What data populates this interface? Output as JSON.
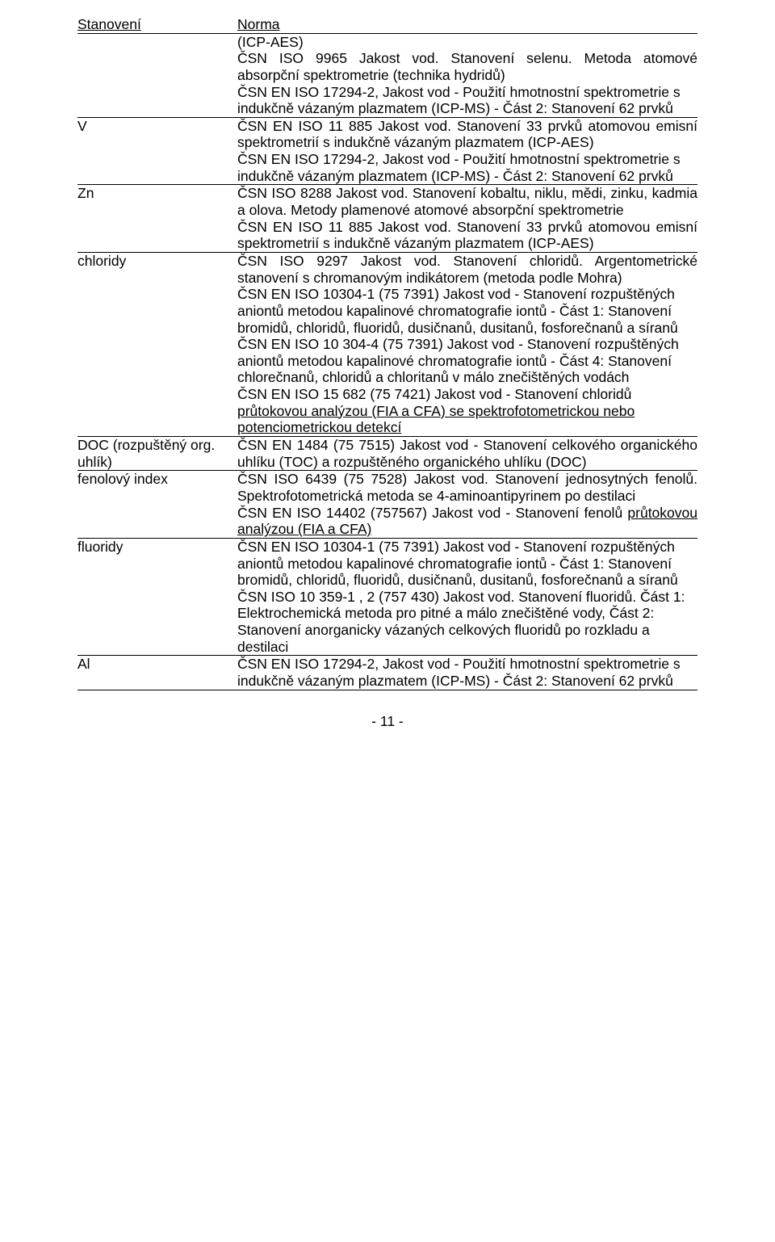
{
  "header": {
    "left": "Stanovení",
    "right": "Norma"
  },
  "rows": [
    {
      "left": "",
      "right": [
        {
          "t": "(ICP-AES)"
        },
        {
          "t": "ČSN ISO 9965 Jakost vod. Stanovení selenu. Metoda atomové absorpční spektrometrie (technika hydridů)"
        },
        {
          "t": "ČSN EN ISO 17294-2, Jakost vod - Použití hmotnostní spektrometrie s indukčně vázaným plazmatem (ICP-MS) - Část 2: Stanovení 62 prvků"
        }
      ]
    },
    {
      "left": "V",
      "right": [
        {
          "t": "ČSN EN ISO 11 885 Jakost vod. Stanovení 33 prvků atomovou emisní spektrometrií s indukčně vázaným plazmatem (ICP-AES)"
        },
        {
          "t": "ČSN EN ISO 17294-2, Jakost vod - Použití hmotnostní spektrometrie s indukčně vázaným plazmatem (ICP-MS) - Část 2: Stanovení 62 prvků"
        }
      ]
    },
    {
      "left": "Zn",
      "right": [
        {
          "t": "ČSN ISO 8288 Jakost vod. Stanovení kobaltu, niklu, mědi, zinku, kadmia a olova. Metody plamenové atomové absorpční spektrometrie"
        },
        {
          "t": "ČSN EN ISO 11 885 Jakost vod. Stanovení 33 prvků atomovou emisní spektrometrií s indukčně vázaným plazmatem (ICP-AES)"
        }
      ]
    },
    {
      "left": "chloridy",
      "right": [
        {
          "t": "ČSN ISO 9297 Jakost vod. Stanovení chloridů. Argentometrické stanovení s chromanovým indikátorem (metoda podle Mohra)"
        },
        {
          "t": "ČSN EN ISO 10304-1 (75 7391) Jakost vod - Stanovení rozpuštěných aniontů metodou kapalinové chromatografie iontů - Část 1: Stanovení bromidů, chloridů, fluoridů, dusičnanů, dusitanů, fosforečnanů a síranů"
        },
        {
          "t": "ČSN EN ISO 10 304-4  (75 7391) Jakost vod - Stanovení rozpuštěných aniontů metodou kapalinové chromatografie iontů - Část 4: Stanovení chlorečnanů, chloridů a chloritanů v málo znečištěných vodách"
        },
        {
          "t_pre": "ČSN EN ISO 15 682 (75 7421) Jakost vod - Stanovení chloridů ",
          "t_u": "průtokovou analýzou (FIA a CFA) se spektrofotometrickou nebo potenciometrickou detekcí"
        }
      ]
    },
    {
      "left": "DOC (rozpuštěný org. uhlík)",
      "right": [
        {
          "t": "ČSN EN 1484 (75 7515) Jakost vod - Stanovení celkového organického uhlíku (TOC) a rozpuštěného organického uhlíku (DOC)"
        }
      ]
    },
    {
      "left": "fenolový index",
      "right": [
        {
          "t": "ČSN ISO 6439 (75 7528) Jakost vod. Stanovení jednosytných fenolů. Spektrofotometrická metoda se 4-aminoantipyrinem po destilaci"
        },
        {
          "t_pre": "ČSN EN ISO 14402 (757567) Jakost vod - Stanovení fenolů ",
          "t_u": "průtokovou analýzou (FIA a CFA)"
        }
      ]
    },
    {
      "left": "fluoridy",
      "right": [
        {
          "t": "ČSN EN ISO 10304-1 (75 7391) Jakost vod - Stanovení rozpuštěných aniontů metodou kapalinové chromatografie iontů - Část 1: Stanovení bromidů, chloridů, fluoridů, dusičnanů, dusitanů, fosforečnanů a síranů"
        },
        {
          "t": "ČSN ISO 10 359-1 , 2 (757 430) Jakost vod. Stanovení fluoridů. Část 1: Elektrochemická metoda pro pitné a málo znečištěné vody, Část 2: Stanovení anorganicky vázaných celkových fluoridů po rozkladu a destilaci"
        }
      ]
    },
    {
      "left": "Al",
      "right": [
        {
          "t": "ČSN EN ISO 17294-2, Jakost vod - Použití hmotnostní spektrometrie s indukčně vázaným plazmatem (ICP-MS) - Část 2: Stanovení 62 prvků"
        }
      ]
    }
  ],
  "pagenum": "- 11 -"
}
